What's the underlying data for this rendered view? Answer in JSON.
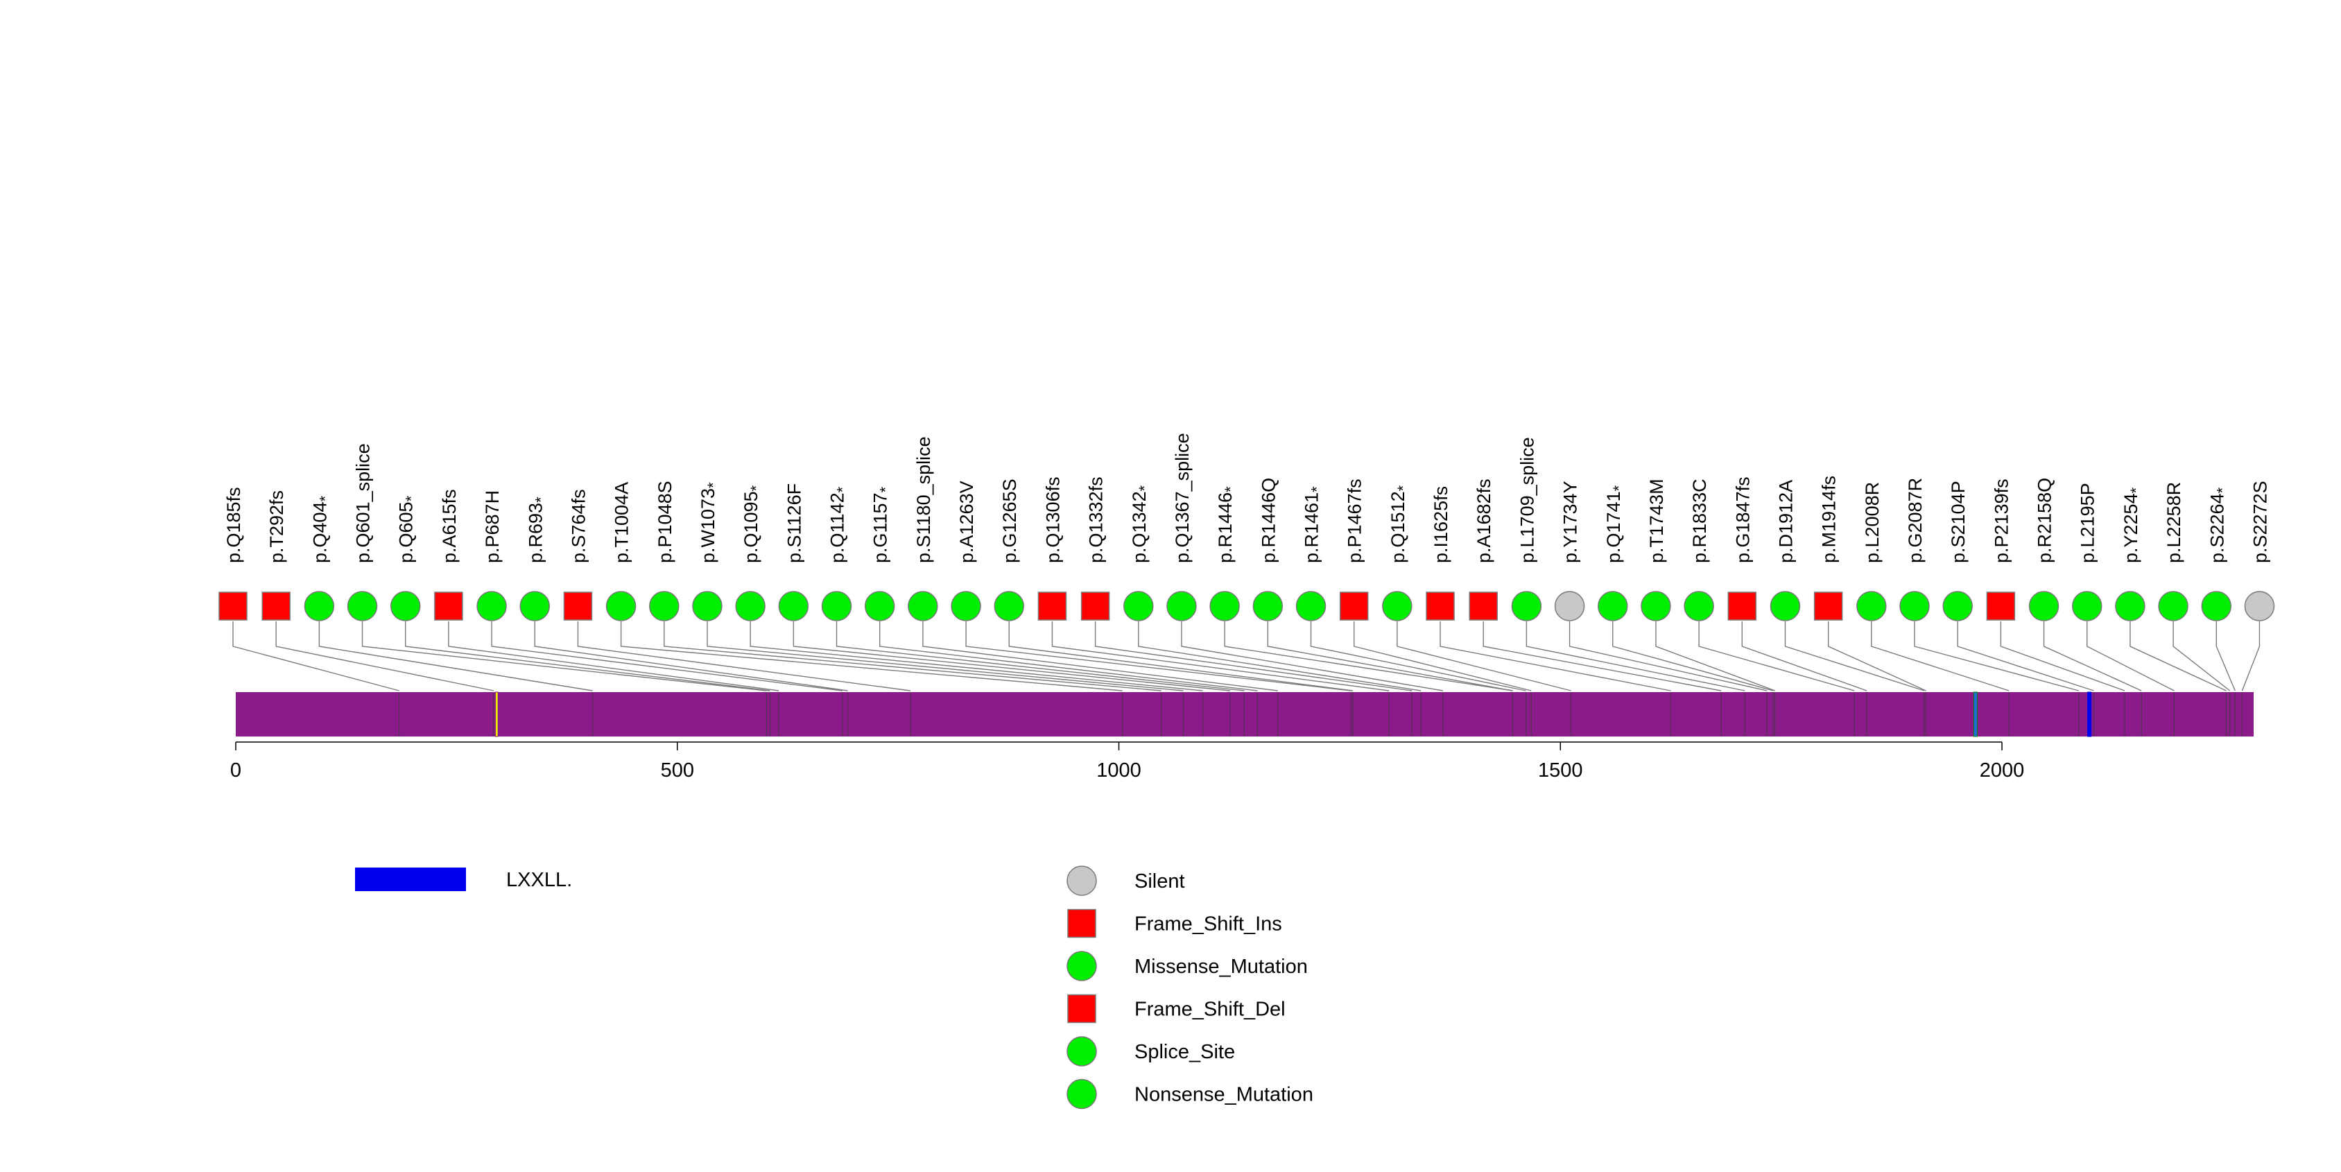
{
  "chart_data": {
    "type": "lollipop",
    "title": "",
    "protein_length": 2285,
    "xlim": [
      0,
      2285
    ],
    "x_ticks": [
      0,
      500,
      1000,
      1500,
      2000
    ],
    "x_tick_labels": [
      "0",
      "500",
      "1000",
      "1500",
      "2000"
    ],
    "backbone_color": "#8B1A8B",
    "domains": [
      {
        "name": "LXXLL.",
        "start": 294,
        "end": 297,
        "color": "#E8E800",
        "border": "#8B1A8B"
      },
      {
        "name": "LXXLL.",
        "start": 1968,
        "end": 1972,
        "color": "#1E6FD9",
        "border": "#008B00"
      },
      {
        "name": "LXXLL.",
        "start": 2097,
        "end": 2101,
        "color": "#0000EE",
        "border": "#0000EE"
      }
    ],
    "mutations": [
      {
        "label": "p.Q185fs",
        "position": 185,
        "type": "Frame_Shift_Del",
        "stars": 0
      },
      {
        "label": "p.T292fs",
        "position": 292,
        "type": "Frame_Shift_Del",
        "stars": 0
      },
      {
        "label": "p.Q404",
        "position": 404,
        "type": "Nonsense_Mutation",
        "stars": 1
      },
      {
        "label": "p.Q601_splice",
        "position": 601,
        "type": "Splice_Site",
        "stars": 0
      },
      {
        "label": "p.Q605",
        "position": 605,
        "type": "Nonsense_Mutation",
        "stars": 1
      },
      {
        "label": "p.A615fs",
        "position": 615,
        "type": "Frame_Shift_Del",
        "stars": 0
      },
      {
        "label": "p.P687H",
        "position": 687,
        "type": "Missense_Mutation",
        "stars": 0
      },
      {
        "label": "p.R693",
        "position": 693,
        "type": "Nonsense_Mutation",
        "stars": 1
      },
      {
        "label": "p.S764fs",
        "position": 764,
        "type": "Frame_Shift_Del",
        "stars": 0
      },
      {
        "label": "p.T1004A",
        "position": 1004,
        "type": "Missense_Mutation",
        "stars": 0
      },
      {
        "label": "p.P1048S",
        "position": 1048,
        "type": "Missense_Mutation",
        "stars": 0
      },
      {
        "label": "p.W1073",
        "position": 1073,
        "type": "Nonsense_Mutation",
        "stars": 1
      },
      {
        "label": "p.Q1095",
        "position": 1095,
        "type": "Nonsense_Mutation",
        "stars": 1
      },
      {
        "label": "p.S1126F",
        "position": 1126,
        "type": "Missense_Mutation",
        "stars": 0
      },
      {
        "label": "p.Q1142",
        "position": 1142,
        "type": "Nonsense_Mutation",
        "stars": 1
      },
      {
        "label": "p.G1157",
        "position": 1157,
        "type": "Nonsense_Mutation",
        "stars": 1
      },
      {
        "label": "p.S1180_splice",
        "position": 1180,
        "type": "Splice_Site",
        "stars": 0
      },
      {
        "label": "p.A1263V",
        "position": 1263,
        "type": "Missense_Mutation",
        "stars": 0
      },
      {
        "label": "p.G1265S",
        "position": 1265,
        "type": "Missense_Mutation",
        "stars": 0
      },
      {
        "label": "p.Q1306fs",
        "position": 1306,
        "type": "Frame_Shift_Del",
        "stars": 0
      },
      {
        "label": "p.Q1332fs",
        "position": 1332,
        "type": "Frame_Shift_Del",
        "stars": 0
      },
      {
        "label": "p.Q1342",
        "position": 1342,
        "type": "Nonsense_Mutation",
        "stars": 1
      },
      {
        "label": "p.Q1367_splice",
        "position": 1367,
        "type": "Splice_Site",
        "stars": 0
      },
      {
        "label": "p.R1446",
        "position": 1446,
        "type": "Nonsense_Mutation",
        "stars": 1
      },
      {
        "label": "p.R1446Q",
        "position": 1446,
        "type": "Missense_Mutation",
        "stars": 0
      },
      {
        "label": "p.R1461",
        "position": 1461,
        "type": "Nonsense_Mutation",
        "stars": 1
      },
      {
        "label": "p.P1467fs",
        "position": 1467,
        "type": "Frame_Shift_Del",
        "stars": 0
      },
      {
        "label": "p.Q1512",
        "position": 1512,
        "type": "Nonsense_Mutation",
        "stars": 1
      },
      {
        "label": "p.I1625fs",
        "position": 1625,
        "type": "Frame_Shift_Del",
        "stars": 0
      },
      {
        "label": "p.A1682fs",
        "position": 1682,
        "type": "Frame_Shift_Del",
        "stars": 0
      },
      {
        "label": "p.L1709_splice",
        "position": 1709,
        "type": "Splice_Site",
        "stars": 0
      },
      {
        "label": "p.Y1734Y",
        "position": 1734,
        "type": "Silent",
        "stars": 0
      },
      {
        "label": "p.Q1741",
        "position": 1741,
        "type": "Nonsense_Mutation",
        "stars": 1
      },
      {
        "label": "p.T1743M",
        "position": 1743,
        "type": "Missense_Mutation",
        "stars": 0
      },
      {
        "label": "p.R1833C",
        "position": 1833,
        "type": "Missense_Mutation",
        "stars": 0
      },
      {
        "label": "p.G1847fs",
        "position": 1847,
        "type": "Frame_Shift_Del",
        "stars": 0
      },
      {
        "label": "p.D1912A",
        "position": 1912,
        "type": "Missense_Mutation",
        "stars": 0
      },
      {
        "label": "p.M1914fs",
        "position": 1914,
        "type": "Frame_Shift_Del",
        "stars": 0
      },
      {
        "label": "p.L2008R",
        "position": 2008,
        "type": "Missense_Mutation",
        "stars": 0
      },
      {
        "label": "p.G2087R",
        "position": 2087,
        "type": "Missense_Mutation",
        "stars": 0
      },
      {
        "label": "p.S2104P",
        "position": 2104,
        "type": "Missense_Mutation",
        "stars": 0
      },
      {
        "label": "p.P2139fs",
        "position": 2139,
        "type": "Frame_Shift_Del",
        "stars": 0
      },
      {
        "label": "p.R2158Q",
        "position": 2158,
        "type": "Missense_Mutation",
        "stars": 0
      },
      {
        "label": "p.L2195P",
        "position": 2195,
        "type": "Missense_Mutation",
        "stars": 0
      },
      {
        "label": "p.Y2254",
        "position": 2254,
        "type": "Nonsense_Mutation",
        "stars": 1
      },
      {
        "label": "p.L2258R",
        "position": 2258,
        "type": "Missense_Mutation",
        "stars": 0
      },
      {
        "label": "p.S2264",
        "position": 2264,
        "type": "Nonsense_Mutation",
        "stars": 1
      },
      {
        "label": "p.S2272S",
        "position": 2272,
        "type": "Silent",
        "stars": 0
      }
    ],
    "mutation_types": {
      "Silent": {
        "shape": "circle",
        "color": "#C8C8C8"
      },
      "Frame_Shift_Ins": {
        "shape": "square",
        "color": "#FF0000"
      },
      "Missense_Mutation": {
        "shape": "circle",
        "color": "#00EE00"
      },
      "Frame_Shift_Del": {
        "shape": "square",
        "color": "#FF0000"
      },
      "Splice_Site": {
        "shape": "circle",
        "color": "#00EE00"
      },
      "Nonsense_Mutation": {
        "shape": "circle",
        "color": "#00EE00"
      }
    },
    "domain_legend": [
      {
        "label": "LXXLL.",
        "color": "#0000EE"
      }
    ],
    "type_legend": [
      {
        "label": "Silent",
        "type": "Silent"
      },
      {
        "label": "Frame_Shift_Ins",
        "type": "Frame_Shift_Ins"
      },
      {
        "label": "Missense_Mutation",
        "type": "Missense_Mutation"
      },
      {
        "label": "Frame_Shift_Del",
        "type": "Frame_Shift_Del"
      },
      {
        "label": "Splice_Site",
        "type": "Splice_Site"
      },
      {
        "label": "Nonsense_Mutation",
        "type": "Nonsense_Mutation"
      }
    ],
    "star_glyph": "*"
  }
}
